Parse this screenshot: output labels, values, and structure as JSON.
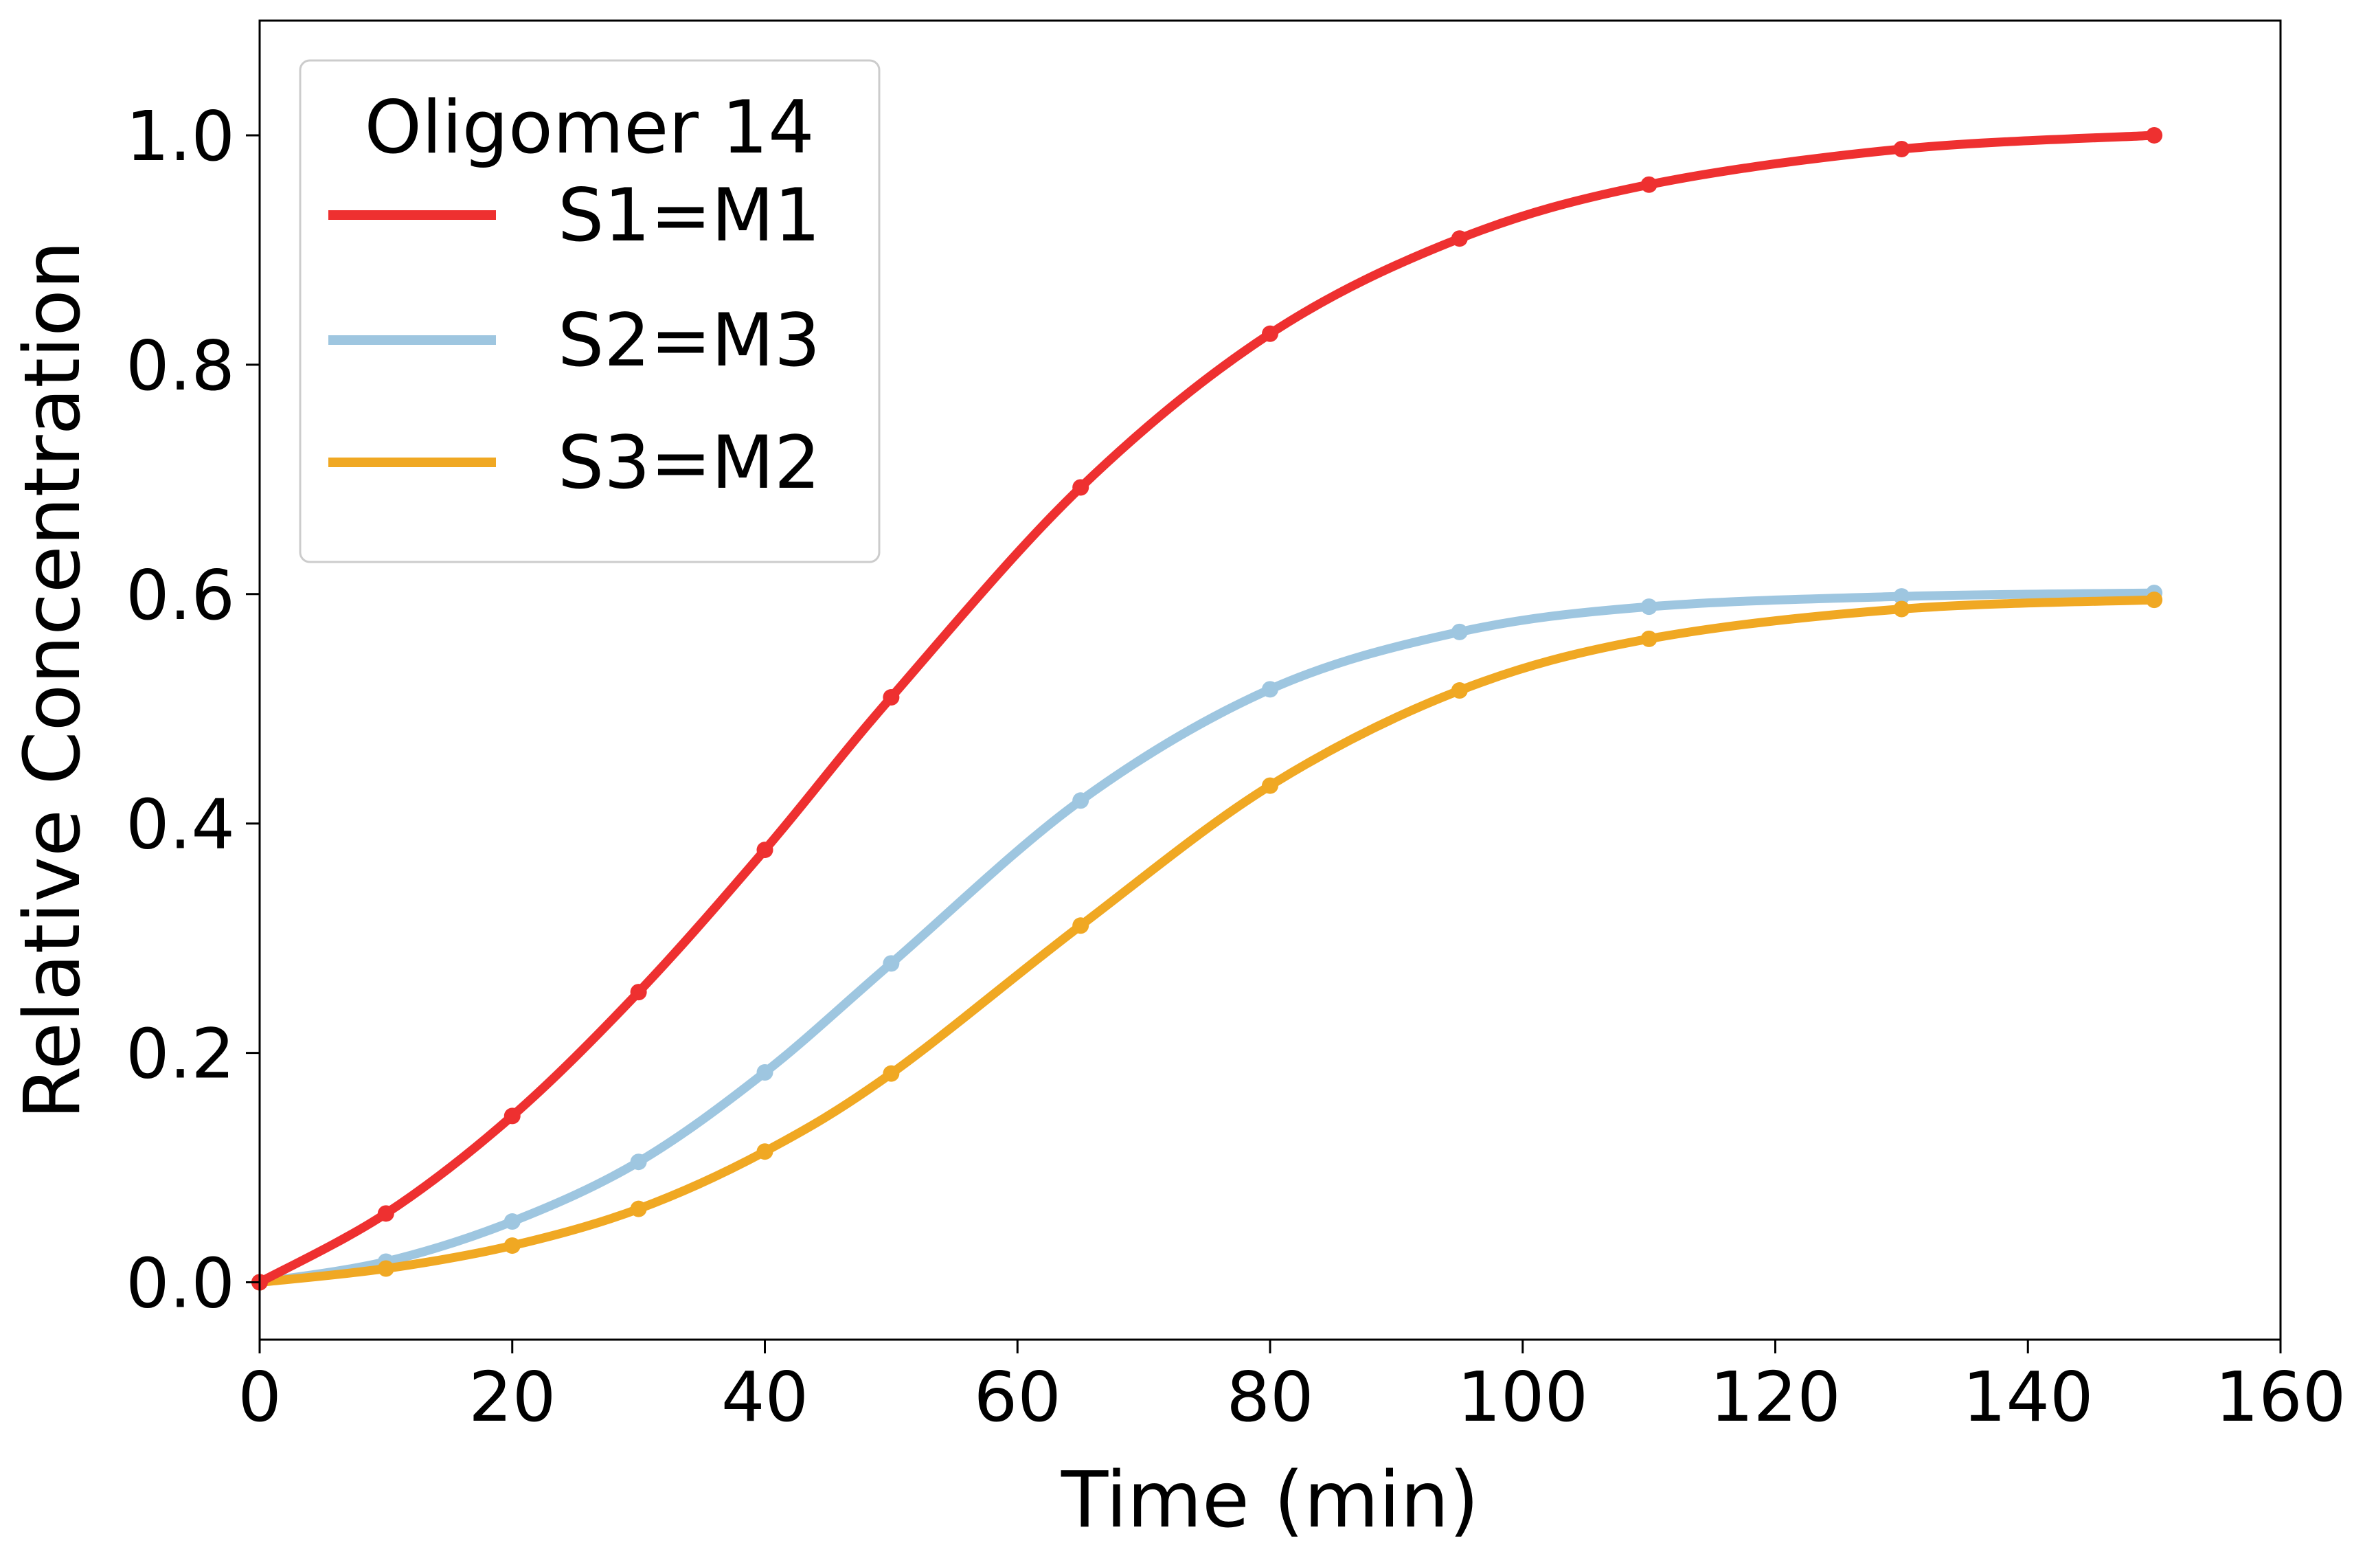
{
  "chart_data": {
    "type": "line",
    "title": "",
    "xlabel": "Time (min)",
    "ylabel": "Relative Concentration",
    "xlim": [
      0,
      160
    ],
    "ylim": [
      -0.05,
      1.1
    ],
    "xticks": [
      0,
      20,
      40,
      60,
      80,
      100,
      120,
      140,
      160
    ],
    "yticks": [
      0.0,
      0.2,
      0.4,
      0.6,
      0.8,
      1.0
    ],
    "xtick_labels": [
      "0",
      "20",
      "40",
      "60",
      "80",
      "100",
      "120",
      "140",
      "160"
    ],
    "ytick_labels": [
      "0.0",
      "0.2",
      "0.4",
      "0.6",
      "0.8",
      "1.0"
    ],
    "grid": false,
    "legend": {
      "title": "Oligomer 14",
      "placement": "top-left"
    },
    "x": [
      0,
      10,
      20,
      30,
      40,
      50,
      65,
      80,
      95,
      110,
      130,
      150
    ],
    "series": [
      {
        "name": "S1=M1",
        "color": "#ee3030",
        "values": [
          0.0,
          0.06,
          0.145,
          0.253,
          0.377,
          0.51,
          0.693,
          0.827,
          0.91,
          0.957,
          0.988,
          1.0
        ]
      },
      {
        "name": "S2=M3",
        "color": "#9ec6e0",
        "values": [
          0.0,
          0.018,
          0.053,
          0.105,
          0.183,
          0.278,
          0.42,
          0.517,
          0.567,
          0.589,
          0.598,
          0.601
        ]
      },
      {
        "name": "S3=M2",
        "color": "#f0a823",
        "values": [
          0.0,
          0.012,
          0.032,
          0.064,
          0.114,
          0.182,
          0.311,
          0.433,
          0.516,
          0.561,
          0.587,
          0.595
        ]
      }
    ]
  }
}
